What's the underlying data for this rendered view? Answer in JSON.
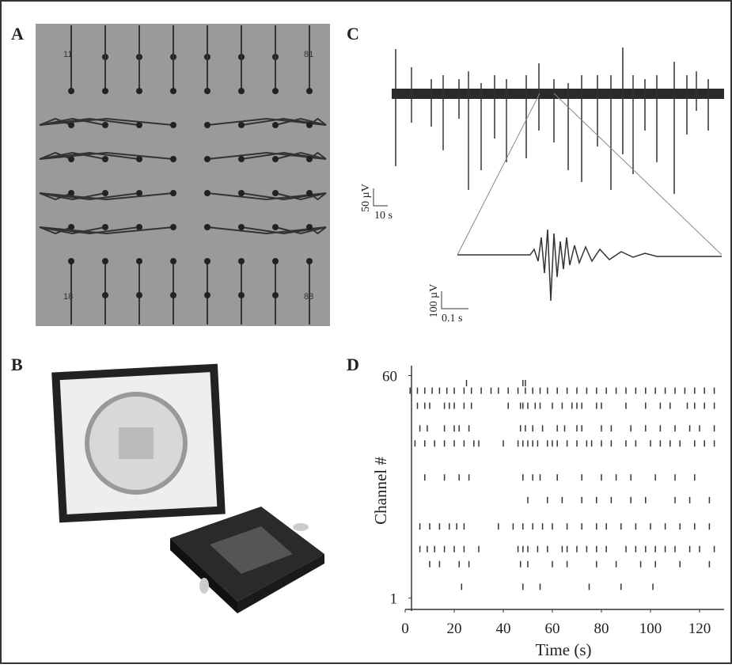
{
  "panels": {
    "a": {
      "label": "A",
      "electrode_labels": [
        "11",
        "81",
        "18",
        "88"
      ]
    },
    "b": {
      "label": "B"
    },
    "c": {
      "label": "C",
      "scale_top": {
        "y": "50 µV",
        "x": "10 s"
      },
      "scale_bottom": {
        "y": "100 µV",
        "x": "0.1 s"
      }
    }
  },
  "chart_data": {
    "type": "raster",
    "panel_label": "D",
    "x_label": "Time (s)",
    "y_label": "Channel #",
    "xlim": [
      0,
      130
    ],
    "ylim": [
      -2,
      62
    ],
    "xticks": [
      0,
      20,
      40,
      60,
      80,
      100,
      120
    ],
    "yticks": [
      1,
      60
    ],
    "color": "#333333",
    "spikes": [
      {
        "channel": 58,
        "times": [
          25,
          48,
          49
        ]
      },
      {
        "channel": 56,
        "times": [
          2,
          5,
          8,
          11,
          14,
          17,
          20,
          24,
          27,
          31,
          35,
          38,
          42,
          46,
          49,
          52,
          55,
          58,
          62,
          66,
          70,
          74,
          78,
          82,
          86,
          90,
          94,
          98,
          102,
          106,
          110,
          114,
          118,
          122,
          126
        ]
      },
      {
        "channel": 52,
        "times": [
          5,
          8,
          10,
          16,
          18,
          20,
          24,
          27,
          42,
          47,
          48,
          50,
          53,
          55,
          60,
          64,
          68,
          70,
          72,
          78,
          80,
          90,
          98,
          104,
          108,
          115,
          118,
          122,
          126
        ]
      },
      {
        "channel": 46,
        "times": [
          6,
          9,
          16,
          20,
          22,
          26,
          47,
          49,
          52,
          56,
          62,
          65,
          70,
          72,
          80,
          84,
          92,
          98,
          104,
          110,
          116,
          120,
          126
        ]
      },
      {
        "channel": 42,
        "times": [
          4,
          8,
          12,
          16,
          20,
          24,
          28,
          30,
          40,
          46,
          48,
          50,
          52,
          54,
          58,
          60,
          62,
          66,
          70,
          74,
          76,
          80,
          84,
          90,
          94,
          100,
          104,
          108,
          112,
          118,
          122,
          126
        ]
      },
      {
        "channel": 33,
        "times": [
          8,
          16,
          22,
          26,
          48,
          52,
          55,
          62,
          72,
          80,
          86,
          92,
          102,
          110,
          118
        ]
      },
      {
        "channel": 27,
        "times": [
          50,
          58,
          64,
          72,
          78,
          84,
          92,
          98,
          110,
          116,
          124
        ]
      },
      {
        "channel": 20,
        "times": [
          6,
          10,
          14,
          18,
          21,
          24,
          38,
          44,
          48,
          52,
          56,
          60,
          66,
          72,
          78,
          82,
          88,
          94,
          100,
          106,
          112,
          118,
          124
        ]
      },
      {
        "channel": 14,
        "times": [
          6,
          9,
          12,
          16,
          20,
          24,
          30,
          46,
          48,
          50,
          54,
          58,
          64,
          66,
          70,
          74,
          78,
          82,
          90,
          94,
          98,
          102,
          106,
          110,
          116,
          120,
          126
        ]
      },
      {
        "channel": 10,
        "times": [
          10,
          14,
          22,
          26,
          47,
          50,
          60,
          66,
          78,
          86,
          96,
          102,
          112,
          124
        ]
      },
      {
        "channel": 4,
        "times": [
          23,
          48,
          55,
          75,
          88,
          101
        ]
      }
    ]
  }
}
